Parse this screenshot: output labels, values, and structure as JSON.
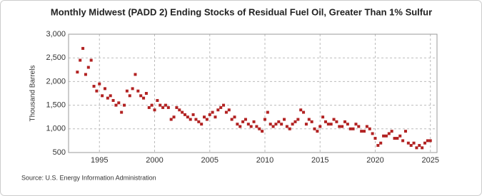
{
  "chart_data": {
    "type": "scatter",
    "title": "Monthly Midwest (PADD 2) Ending Stocks of Residual Fuel Oil, Greater Than 1% Sulfur",
    "y_label": "Thousand Barrels",
    "source": "Source: U.S. Energy Information Administration",
    "color": "#b22222",
    "grid": true,
    "xlim": [
      1992.2,
      2025.6
    ],
    "xticks": [
      1995,
      2000,
      2005,
      2010,
      2015,
      2020,
      2025
    ],
    "ylim": [
      500,
      3000
    ],
    "yticks": [
      500,
      {
        "value": 1000,
        "label": "1,000"
      },
      {
        "value": 1500,
        "label": "1,500"
      },
      {
        "value": 2000,
        "label": "2,000"
      },
      {
        "value": 2500,
        "label": "2,500"
      },
      {
        "value": 3000,
        "label": "3,000"
      }
    ],
    "x": [
      1993,
      1993.25,
      1993.5,
      1993.75,
      1994,
      1994.25,
      1994.5,
      1994.75,
      1995,
      1995.25,
      1995.5,
      1995.75,
      1996,
      1996.25,
      1996.5,
      1996.75,
      1997,
      1997.25,
      1997.5,
      1997.75,
      1998,
      1998.25,
      1998.5,
      1998.75,
      1999,
      1999.25,
      1999.5,
      1999.75,
      2000,
      2000.25,
      2000.5,
      2000.75,
      2001,
      2001.25,
      2001.5,
      2001.75,
      2002,
      2002.25,
      2002.5,
      2002.75,
      2003,
      2003.25,
      2003.5,
      2003.75,
      2004,
      2004.25,
      2004.5,
      2004.75,
      2005,
      2005.25,
      2005.5,
      2005.75,
      2006,
      2006.25,
      2006.5,
      2006.75,
      2007,
      2007.25,
      2007.5,
      2007.75,
      2008,
      2008.25,
      2008.5,
      2008.75,
      2009,
      2009.25,
      2009.5,
      2009.75,
      2010,
      2010.25,
      2010.5,
      2010.75,
      2011,
      2011.25,
      2011.5,
      2011.75,
      2012,
      2012.25,
      2012.5,
      2012.75,
      2013,
      2013.25,
      2013.5,
      2013.75,
      2014,
      2014.25,
      2014.5,
      2014.75,
      2015,
      2015.25,
      2015.5,
      2015.75,
      2016,
      2016.25,
      2016.5,
      2016.75,
      2017,
      2017.25,
      2017.5,
      2017.75,
      2018,
      2018.25,
      2018.5,
      2018.75,
      2019,
      2019.25,
      2019.5,
      2019.75,
      2020,
      2020.25,
      2020.5,
      2020.75,
      2021,
      2021.25,
      2021.5,
      2021.75,
      2022,
      2022.25,
      2022.5,
      2022.75,
      2023,
      2023.25,
      2023.5,
      2023.75,
      2024,
      2024.25,
      2024.5,
      2024.75,
      2025
    ],
    "values": [
      2200,
      2450,
      2700,
      2150,
      2300,
      2450,
      1900,
      1800,
      1950,
      1700,
      1850,
      1650,
      1700,
      1600,
      1500,
      1550,
      1350,
      1500,
      1800,
      1700,
      1850,
      2150,
      1800,
      1700,
      1650,
      1750,
      1450,
      1500,
      1400,
      1600,
      1500,
      1450,
      1500,
      1450,
      1200,
      1250,
      1450,
      1400,
      1350,
      1300,
      1250,
      1200,
      1300,
      1200,
      1150,
      1100,
      1250,
      1200,
      1300,
      1350,
      1250,
      1400,
      1450,
      1500,
      1350,
      1400,
      1200,
      1250,
      1100,
      1050,
      1150,
      1200,
      1100,
      1050,
      1150,
      1050,
      1000,
      950,
      1200,
      1350,
      1100,
      1050,
      1100,
      1150,
      1100,
      1200,
      1050,
      1000,
      1100,
      1150,
      1200,
      1400,
      1350,
      1100,
      1200,
      1150,
      1000,
      950,
      1050,
      1250,
      1150,
      1100,
      1100,
      1200,
      1150,
      1050,
      1050,
      1150,
      1100,
      1000,
      1000,
      1100,
      1050,
      950,
      950,
      1050,
      1000,
      900,
      800,
      650,
      700,
      850,
      850,
      900,
      950,
      800,
      800,
      850,
      750,
      950,
      700,
      650,
      700,
      600,
      650,
      600,
      700,
      750,
      750
    ]
  }
}
